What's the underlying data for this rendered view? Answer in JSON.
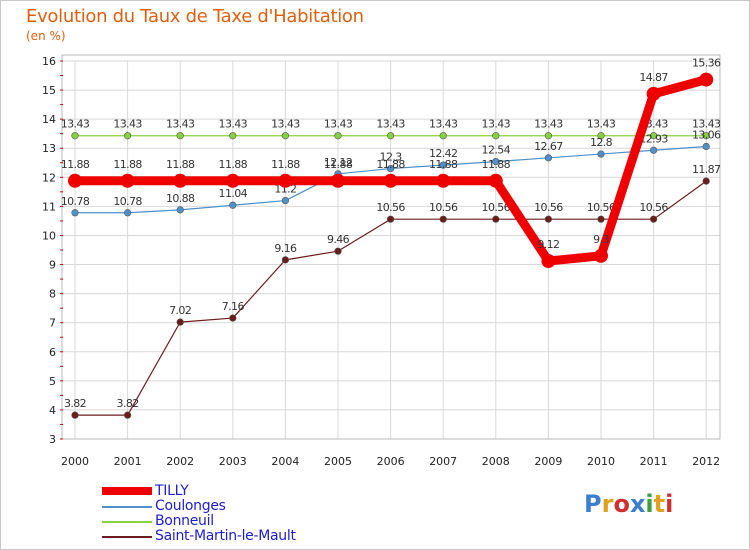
{
  "header": {
    "title": "Evolution du Taux de Taxe d'Habitation",
    "unit": "(en %)"
  },
  "logo": {
    "text": "Proxiti",
    "colors": [
      "#3a7fd0",
      "#e0a020",
      "#d03030",
      "#3a7fd0",
      "#40a040",
      "#e0a020",
      "#d03030"
    ]
  },
  "chart_data": {
    "type": "line",
    "title": "Evolution du Taux de Taxe d'Habitation",
    "ylabel": "(en %)",
    "xlabel": "",
    "categories": [
      "2000",
      "2001",
      "2002",
      "2003",
      "2004",
      "2005",
      "2006",
      "2007",
      "2008",
      "2009",
      "2010",
      "2011",
      "2012"
    ],
    "ylim": [
      3,
      16
    ],
    "yticks": [
      3,
      4,
      5,
      6,
      7,
      8,
      9,
      10,
      11,
      12,
      13,
      14,
      15,
      16
    ],
    "grid": true,
    "legend_position": "bottom-left",
    "series": [
      {
        "name": "Saint-Martin-le-Mault",
        "color": "#6b1c1c",
        "values": [
          3.82,
          3.82,
          7.02,
          7.16,
          9.16,
          9.46,
          10.56,
          10.56,
          10.56,
          10.56,
          10.56,
          10.56,
          11.87
        ],
        "labels": [
          "3.82",
          "3.82",
          "7.02",
          "7.16",
          "9.16",
          "9.46",
          "10.56",
          "10.56",
          "10.56",
          "10.56",
          "10.56",
          "10.56",
          "11.87"
        ]
      },
      {
        "name": "Bonneuil",
        "color": "#88d040",
        "values": [
          13.43,
          13.43,
          13.43,
          13.43,
          13.43,
          13.43,
          13.43,
          13.43,
          13.43,
          13.43,
          13.43,
          13.43,
          13.43
        ],
        "labels": [
          "13.43",
          "13.43",
          "13.43",
          "13.43",
          "13.43",
          "13.43",
          "13.43",
          "13.43",
          "13.43",
          "13.43",
          "13.43",
          "13.43",
          "13.43"
        ]
      },
      {
        "name": "Coulonges",
        "color": "#5090c8",
        "values": [
          10.78,
          10.78,
          10.88,
          11.04,
          11.2,
          12.12,
          12.3,
          12.42,
          12.54,
          12.67,
          12.8,
          12.93,
          13.06
        ],
        "labels": [
          "10.78",
          "10.78",
          "10.88",
          "11.04",
          "11.2",
          "12.12",
          "12.3",
          "12.42",
          "12.54",
          "12.67",
          "12.8",
          "12.93",
          "13.06"
        ]
      },
      {
        "name": "TILLY",
        "color": "#ee0000",
        "values": [
          11.88,
          11.88,
          11.88,
          11.88,
          11.88,
          11.88,
          11.88,
          11.88,
          11.88,
          9.12,
          9.3,
          14.87,
          15.36
        ],
        "labels": [
          "11.88",
          "11.88",
          "11.88",
          "11.88",
          "11.88",
          "11.88",
          "11.88",
          "11.88",
          "11.88",
          "9.12",
          "9.3",
          "14.87",
          "15.36"
        ]
      }
    ],
    "legend": [
      "TILLY",
      "Coulonges",
      "Bonneuil",
      "Saint-Martin-le-Mault"
    ]
  }
}
